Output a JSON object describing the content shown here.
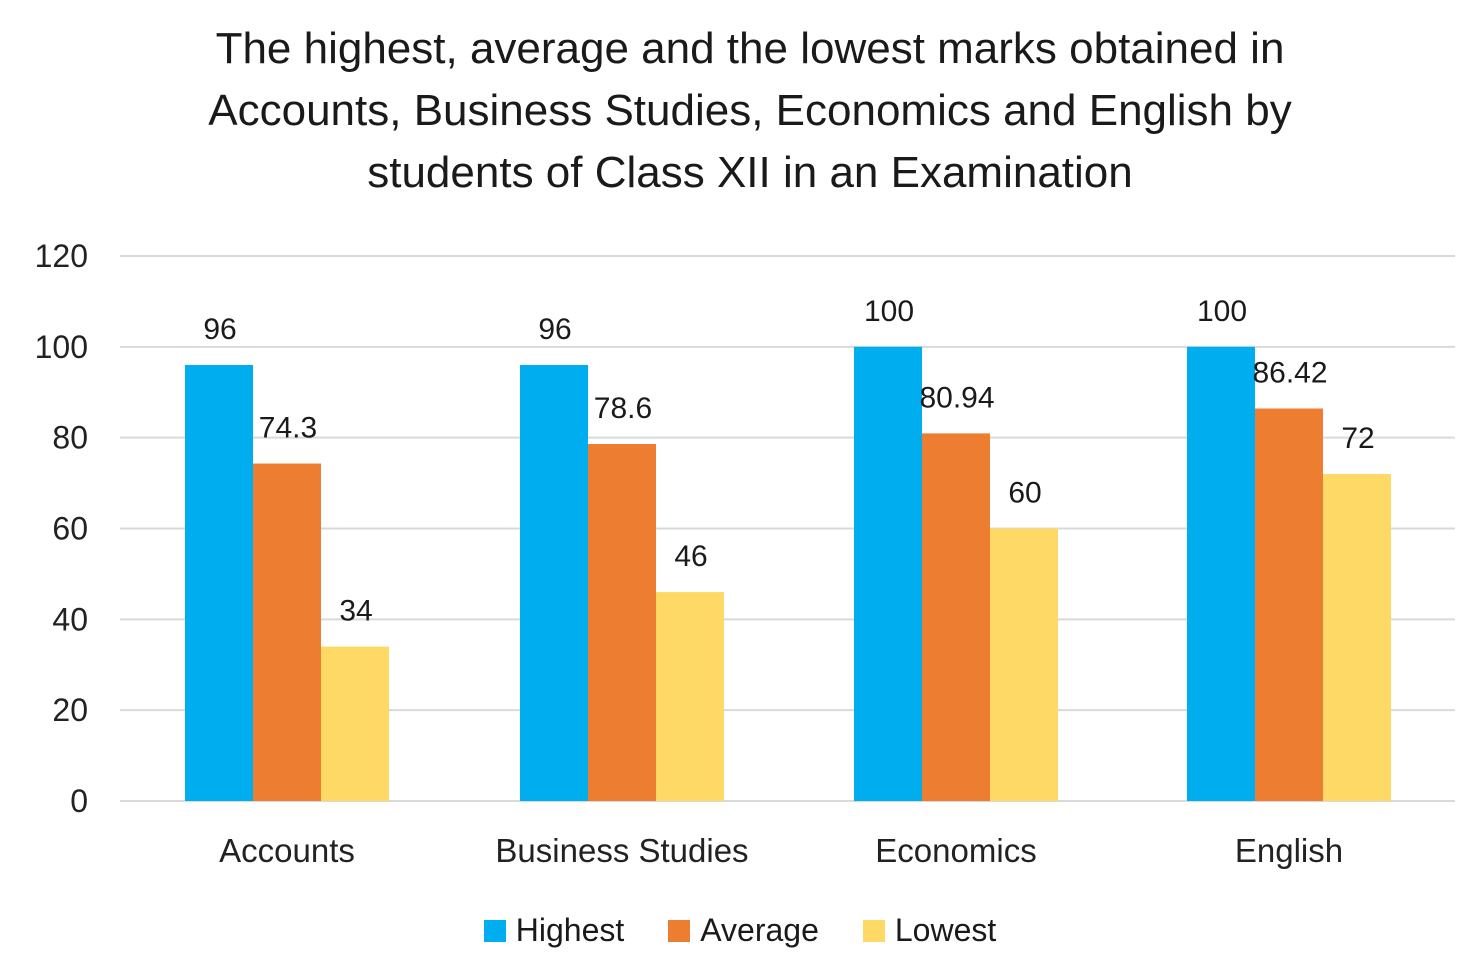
{
  "chart_data": {
    "type": "bar",
    "title_lines": [
      "The highest, average and the lowest marks obtained in",
      "Accounts, Business Studies, Economics and English by",
      "students of Class XII in an Examination"
    ],
    "categories": [
      "Accounts",
      "Business Studies",
      "Economics",
      "English"
    ],
    "series": [
      {
        "name": "Highest",
        "values": [
          96,
          96,
          100,
          100
        ],
        "color": "#00AEEF",
        "labels": [
          "96",
          "96",
          "100",
          "100"
        ]
      },
      {
        "name": "Average",
        "values": [
          74.3,
          78.6,
          80.94,
          86.42
        ],
        "color": "#ED7D31",
        "labels": [
          "74.3",
          "78.6",
          "80.94",
          "86.42"
        ]
      },
      {
        "name": "Lowest",
        "values": [
          34,
          46,
          60,
          72
        ],
        "color": "#FFD966",
        "labels": [
          "34",
          "46",
          "60",
          "72"
        ]
      }
    ],
    "ylim": [
      0,
      120
    ],
    "yticks": [
      0,
      20,
      40,
      60,
      80,
      100,
      120
    ],
    "ytick_labels": [
      "0",
      "20",
      "40",
      "60",
      "80",
      "100",
      "120"
    ],
    "grid": true,
    "legend_position": "bottom",
    "gridline_color": "#D9D9D9"
  }
}
